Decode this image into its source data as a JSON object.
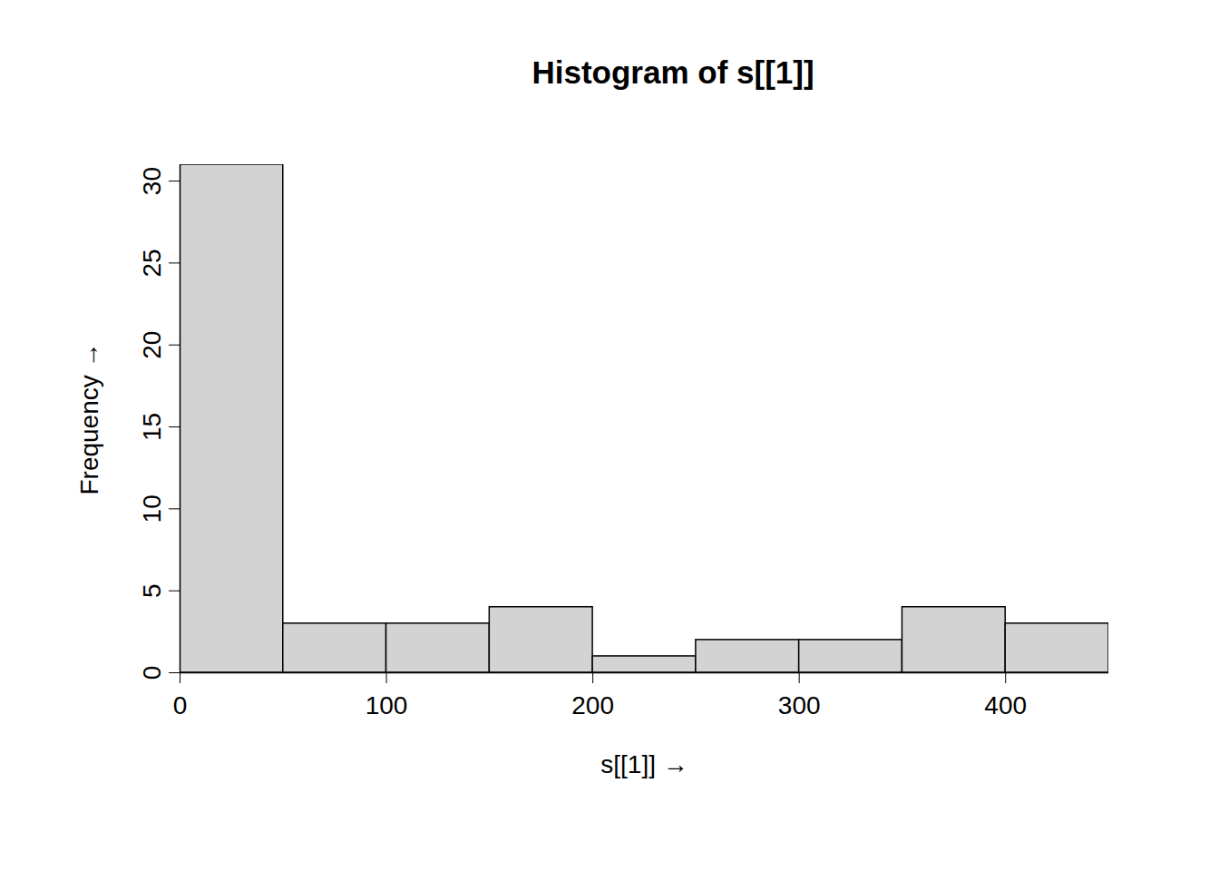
{
  "chart_data": {
    "type": "histogram",
    "title": "Histogram of s[[1]]",
    "x_label": "s[[1]]",
    "y_label": "Frequency",
    "bins": [
      0,
      50,
      100,
      150,
      200,
      250,
      300,
      350,
      400,
      450
    ],
    "values": [
      31,
      3,
      3,
      4,
      1,
      2,
      2,
      4,
      3
    ],
    "color": "#d3d3d3",
    "xlim": [
      0,
      450
    ],
    "xticks": [
      0,
      100,
      200,
      300,
      400
    ],
    "ylim": [
      0,
      31
    ],
    "yticks": [
      0,
      5,
      10,
      15,
      20,
      25,
      30
    ],
    "grid": false
  }
}
